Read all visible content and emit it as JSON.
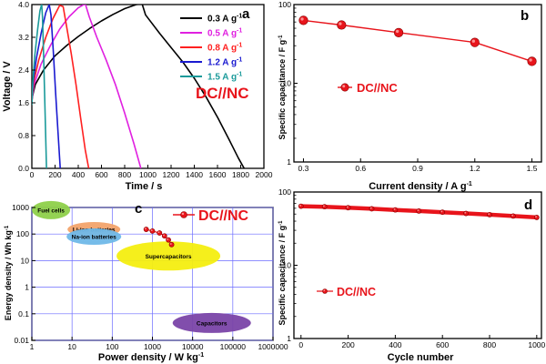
{
  "chart_data": [
    {
      "id": "a",
      "type": "line",
      "panel_label": "a",
      "xlabel": "Time / s",
      "ylabel": "Voltage / V",
      "xlim": [
        0,
        2000
      ],
      "ylim": [
        0,
        4.0
      ],
      "xticks": [
        "0",
        "200",
        "400",
        "600",
        "800",
        "1000",
        "1200",
        "1400",
        "1600",
        "1800",
        "2000"
      ],
      "yticks": [
        "0.0",
        "0.8",
        "1.6",
        "2.4",
        "3.2",
        "4.0"
      ],
      "annotation": "DC//NC",
      "legend_position": "top-right",
      "series": [
        {
          "name": "0.3 A g",
          "unit_sup": "-1",
          "color": "#000000",
          "x": [
            0,
            30,
            100,
            200,
            300,
            400,
            500,
            600,
            700,
            800,
            900,
            950,
            980,
            1100,
            1200,
            1300,
            1400,
            1500,
            1600,
            1700,
            1780,
            1830
          ],
          "y": [
            1.7,
            2.05,
            2.4,
            2.75,
            3.0,
            3.22,
            3.42,
            3.6,
            3.76,
            3.9,
            4.0,
            4.02,
            3.75,
            3.3,
            2.95,
            2.6,
            2.2,
            1.75,
            1.25,
            0.7,
            0.25,
            0.0
          ]
        },
        {
          "name": "0.5 A g",
          "unit_sup": "-1",
          "color": "#e020e0",
          "x": [
            0,
            20,
            80,
            160,
            240,
            320,
            400,
            460,
            495,
            560,
            640,
            720,
            800,
            880,
            940
          ],
          "y": [
            1.65,
            2.05,
            2.55,
            3.0,
            3.4,
            3.7,
            3.92,
            4.02,
            3.7,
            3.2,
            2.65,
            2.05,
            1.35,
            0.6,
            0.0
          ]
        },
        {
          "name": "0.8 A g",
          "unit_sup": "-1",
          "color": "#ff2020",
          "x": [
            0,
            15,
            60,
            120,
            180,
            240,
            270,
            300,
            340,
            380,
            420,
            460,
            490
          ],
          "y": [
            1.6,
            2.1,
            2.65,
            3.2,
            3.65,
            3.98,
            3.95,
            3.45,
            2.8,
            2.05,
            1.25,
            0.45,
            0.0
          ]
        },
        {
          "name": "1.2 A g",
          "unit_sup": "-1",
          "color": "#1a1ad0",
          "x": [
            0,
            10,
            40,
            80,
            120,
            150,
            165,
            185,
            205,
            225,
            245
          ],
          "y": [
            1.6,
            2.1,
            2.7,
            3.3,
            3.8,
            4.0,
            3.75,
            2.85,
            1.85,
            0.9,
            0.0
          ]
        },
        {
          "name": "1.5 A g",
          "unit_sup": "-1",
          "color": "#1a9a9a",
          "x": [
            0,
            8,
            25,
            50,
            70,
            85,
            92,
            102,
            114,
            126
          ],
          "y": [
            1.55,
            2.1,
            2.75,
            3.4,
            3.85,
            4.0,
            3.7,
            2.7,
            1.4,
            0.0
          ]
        }
      ]
    },
    {
      "id": "b",
      "type": "line",
      "panel_label": "b",
      "xlabel": "Current density / A g",
      "xlabel_sup": "-1",
      "ylabel": "Specific capacitance / F g",
      "ylabel_sup": "-1",
      "yscale": "log",
      "xlim": [
        0.25,
        1.55
      ],
      "ylim": [
        1,
        100
      ],
      "xticks": [
        "0.3",
        "0.6",
        "0.9",
        "1.2",
        "1.5"
      ],
      "yticks": [
        "1",
        "10",
        "100"
      ],
      "legend": "DC//NC",
      "series": [
        {
          "name": "DC//NC",
          "color": "#e8141b",
          "x": [
            0.3,
            0.5,
            0.8,
            1.2,
            1.5
          ],
          "y": [
            63,
            55,
            44,
            33,
            19
          ]
        }
      ]
    },
    {
      "id": "c",
      "type": "scatter",
      "panel_label": "c",
      "xlabel": "Power density / W kg",
      "xlabel_sup": "-1",
      "ylabel": "Energy density / Wh kg",
      "ylabel_sup": "-1",
      "xscale": "log",
      "yscale": "log",
      "xlim": [
        1,
        1000000
      ],
      "ylim": [
        0.01,
        1000
      ],
      "xticks": [
        "1",
        "10",
        "100",
        "1000",
        "10000",
        "100000",
        "1000000"
      ],
      "yticks": [
        "0.01",
        "0.1",
        "1",
        "10",
        "100",
        "1000"
      ],
      "legend": "DC//NC",
      "regions": [
        {
          "label": "Fuel cells",
          "color": "#8ed04a"
        },
        {
          "label": "Li-ion batteries",
          "color": "#f2a36b"
        },
        {
          "label": "Na-ion batteries",
          "color": "#6fb8e8"
        },
        {
          "label": "Supercapacitors",
          "color": "#f4ee10"
        },
        {
          "label": "Capacitors",
          "color": "#7a45a8"
        }
      ],
      "series": [
        {
          "name": "DC//NC",
          "color": "#e8141b",
          "x": [
            700,
            1000,
            1500,
            2000,
            2500,
            3000
          ],
          "y": [
            150,
            130,
            110,
            85,
            60,
            40
          ]
        }
      ]
    },
    {
      "id": "d",
      "type": "line",
      "panel_label": "d",
      "xlabel": "Cycle number",
      "ylabel": "Specific capacitance / F g",
      "ylabel_sup": "-1",
      "yscale": "log",
      "xlim": [
        -30,
        1020
      ],
      "ylim": [
        1,
        100
      ],
      "xticks": [
        "0",
        "200",
        "400",
        "600",
        "800",
        "1000"
      ],
      "yticks": [
        "1",
        "10",
        "100"
      ],
      "legend": "DC//NC",
      "series": [
        {
          "name": "DC//NC",
          "color": "#e8141b",
          "x": [
            0,
            100,
            200,
            300,
            400,
            500,
            600,
            700,
            800,
            900,
            1000
          ],
          "y": [
            64,
            63,
            61,
            59,
            57,
            55,
            53,
            51,
            49,
            47,
            45
          ]
        }
      ]
    }
  ]
}
